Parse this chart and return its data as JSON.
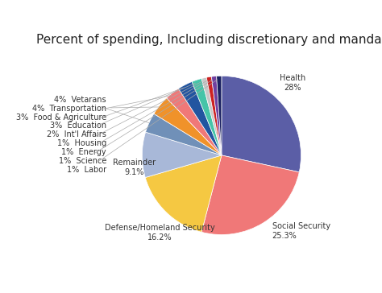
{
  "title": "Percent of spending, Including discretionary and mandatory",
  "slices": [
    {
      "label": "Health",
      "pct": "28%",
      "value": 28.0,
      "color": "#5b5ea6"
    },
    {
      "label": "Social Security",
      "pct": "25.3%",
      "value": 25.3,
      "color": "#f07878"
    },
    {
      "label": "Defense/Homeland Security",
      "pct": "16.2%",
      "value": 16.2,
      "color": "#f5c842"
    },
    {
      "label": "Remainder",
      "pct": "9.1%",
      "value": 9.1,
      "color": "#a8b8d8"
    },
    {
      "label": "4%  Vetarans",
      "pct": "",
      "value": 4.0,
      "color": "#7090b8"
    },
    {
      "label": "4%  Transportation",
      "pct": "",
      "value": 4.0,
      "color": "#f0922a"
    },
    {
      "label": "3%  Food & Agriculture",
      "pct": "",
      "value": 3.0,
      "color": "#f07878"
    },
    {
      "label": "3%  Education",
      "pct": "",
      "value": 3.0,
      "color": "#2255a0"
    },
    {
      "label": "2%  Int'l Affairs",
      "pct": "",
      "value": 2.0,
      "color": "#45c4a8"
    },
    {
      "label": "1%  Housing",
      "pct": "",
      "value": 1.0,
      "color": "#c8c8c8"
    },
    {
      "label": "1%  Energy",
      "pct": "",
      "value": 1.0,
      "color": "#cc2222"
    },
    {
      "label": "1%  Science",
      "pct": "",
      "value": 1.0,
      "color": "#7040a0"
    },
    {
      "label": "1%  Labor",
      "pct": "",
      "value": 1.0,
      "color": "#1a2060"
    }
  ],
  "title_fontsize": 11,
  "label_fontsize": 7,
  "background_color": "#ffffff"
}
